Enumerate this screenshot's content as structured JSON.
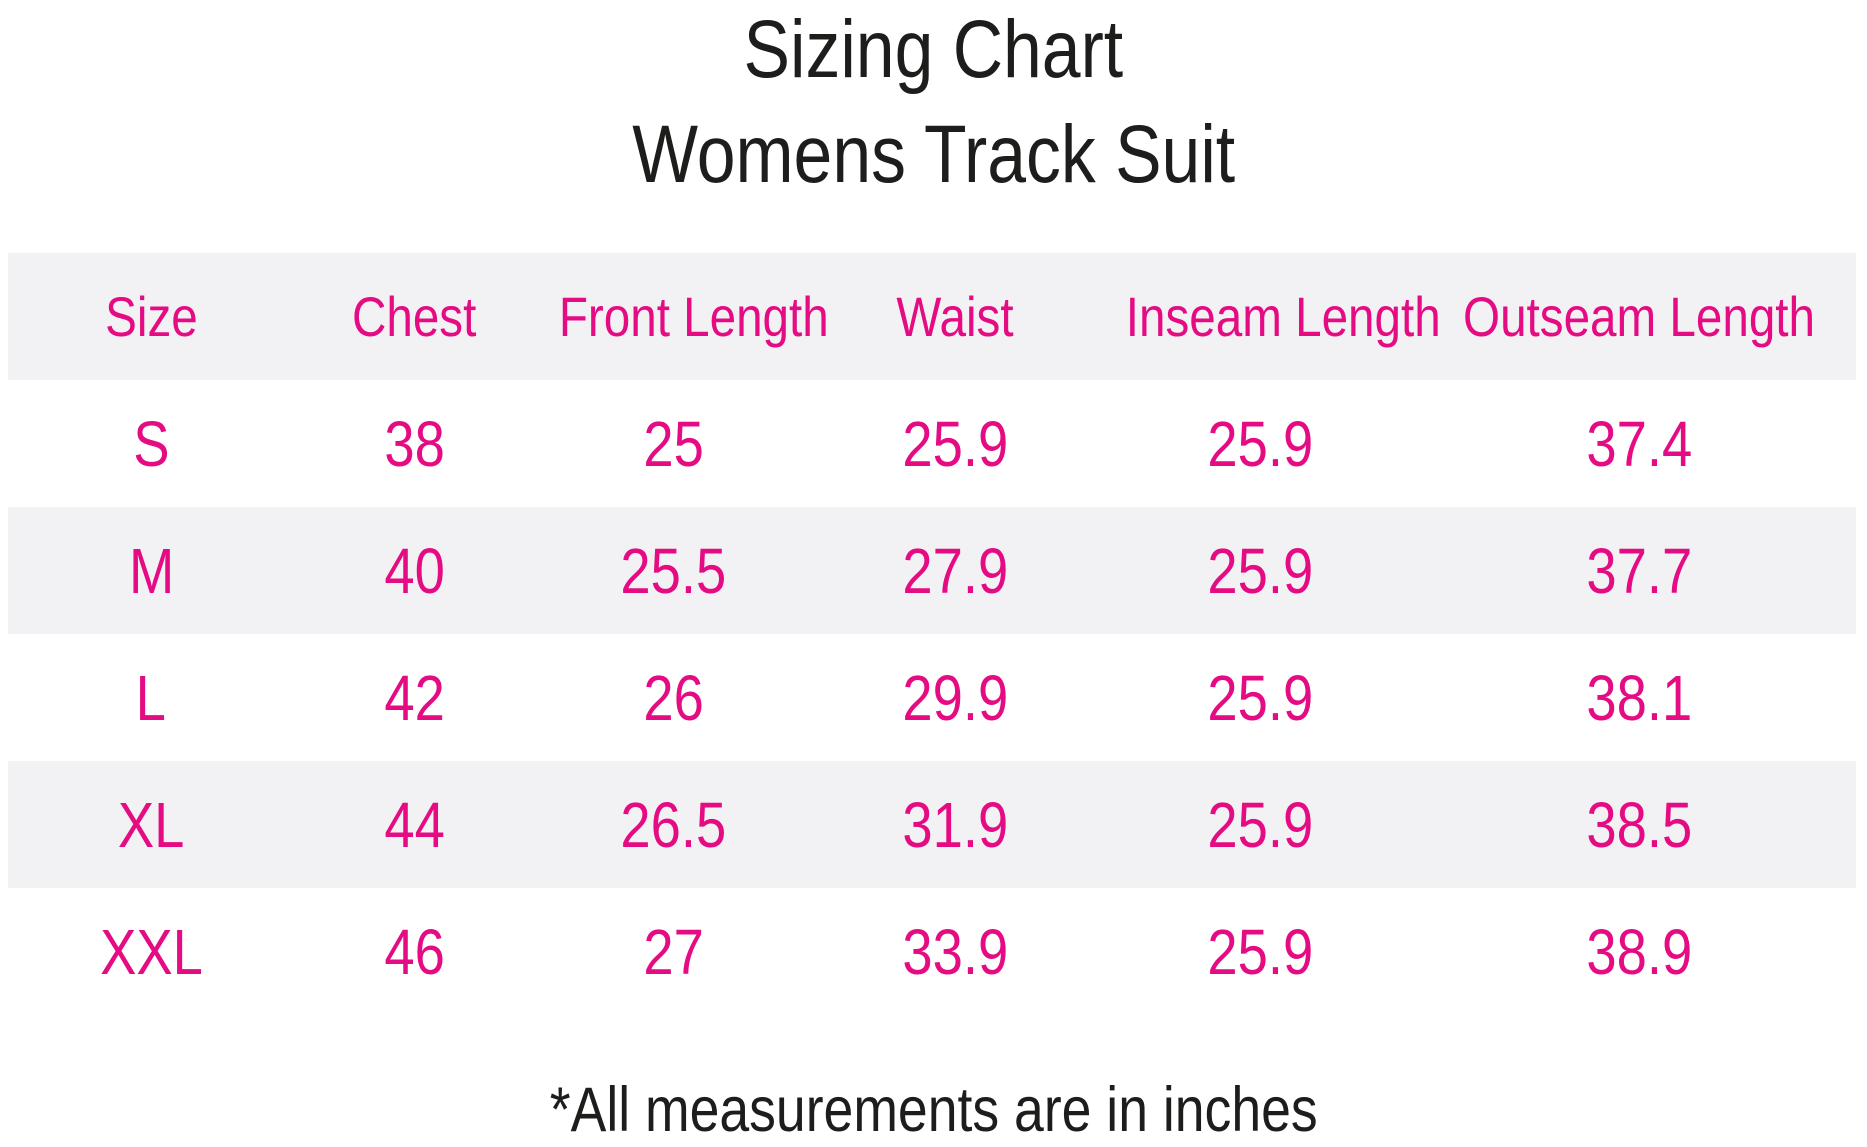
{
  "page": {
    "title": "Sizing Chart",
    "subtitle": "Womens Track Suit",
    "footnote": "*All measurements are in inches"
  },
  "colors": {
    "table_text_pink": "#e40b83",
    "band_gray": "#f2f2f4",
    "heading_black": "#1d1d1b",
    "background": "#ffffff"
  },
  "chart_data": {
    "type": "table",
    "title": "Sizing Chart",
    "subtitle": "Womens Track Suit",
    "columns": [
      "Size",
      "Chest",
      "Front Length",
      "Waist",
      "Inseam Length",
      "Outseam Length"
    ],
    "rows": [
      [
        "S",
        "38",
        "25",
        "25.9",
        "25.9",
        "37.4"
      ],
      [
        "M",
        "40",
        "25.5",
        "27.9",
        "25.9",
        "37.7"
      ],
      [
        "L",
        "42",
        "26",
        "29.9",
        "25.9",
        "38.1"
      ],
      [
        "XL",
        "44",
        "26.5",
        "31.9",
        "25.9",
        "38.5"
      ],
      [
        "XXL",
        "46",
        "27",
        "33.9",
        "25.9",
        "38.9"
      ]
    ],
    "footnote": "*All measurements are in inches",
    "units": "inches",
    "layout": {
      "header_band": true,
      "alternating_row_bands": true,
      "grid_lines": false
    }
  }
}
